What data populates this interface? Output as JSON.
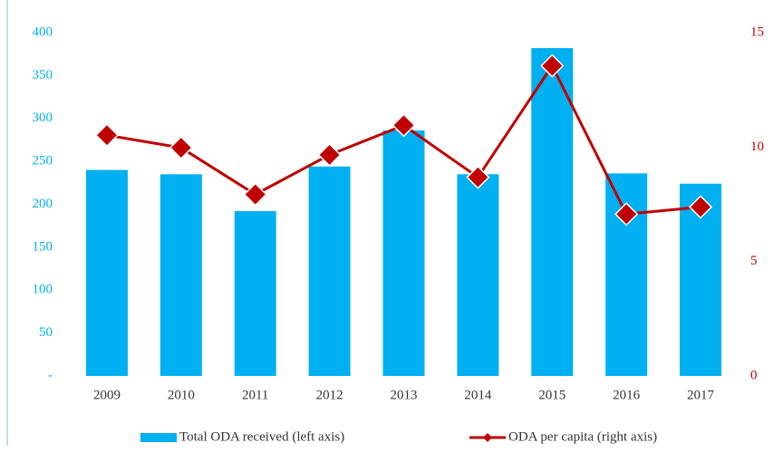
{
  "chart_data": {
    "type": "bar-line",
    "categories": [
      "2009",
      "2010",
      "2011",
      "2012",
      "2013",
      "2014",
      "2015",
      "2016",
      "2017"
    ],
    "series": [
      {
        "name": "Total ODA received (left axis)",
        "type": "bar",
        "color": "#00b0f0",
        "values": [
          240,
          235,
          192,
          244,
          286,
          235,
          382,
          236,
          224
        ]
      },
      {
        "name": "ODA per capita (right axis)",
        "type": "line",
        "axis": "y2",
        "color": "#c00000",
        "values": [
          10.52,
          9.97,
          7.93,
          9.66,
          10.95,
          8.68,
          13.55,
          7.07,
          7.38
        ]
      }
    ],
    "ylim": [
      0,
      400
    ],
    "yticks": [
      {
        "value": 0,
        "label": "-"
      },
      50,
      100,
      150,
      200,
      250,
      300,
      350,
      400
    ],
    "y2lim": [
      0,
      15
    ],
    "y2ticks": [
      0,
      5,
      10,
      15
    ],
    "ytick_color": "#00b0f0",
    "y2tick_color": "#c00000",
    "legend": "bottom"
  }
}
